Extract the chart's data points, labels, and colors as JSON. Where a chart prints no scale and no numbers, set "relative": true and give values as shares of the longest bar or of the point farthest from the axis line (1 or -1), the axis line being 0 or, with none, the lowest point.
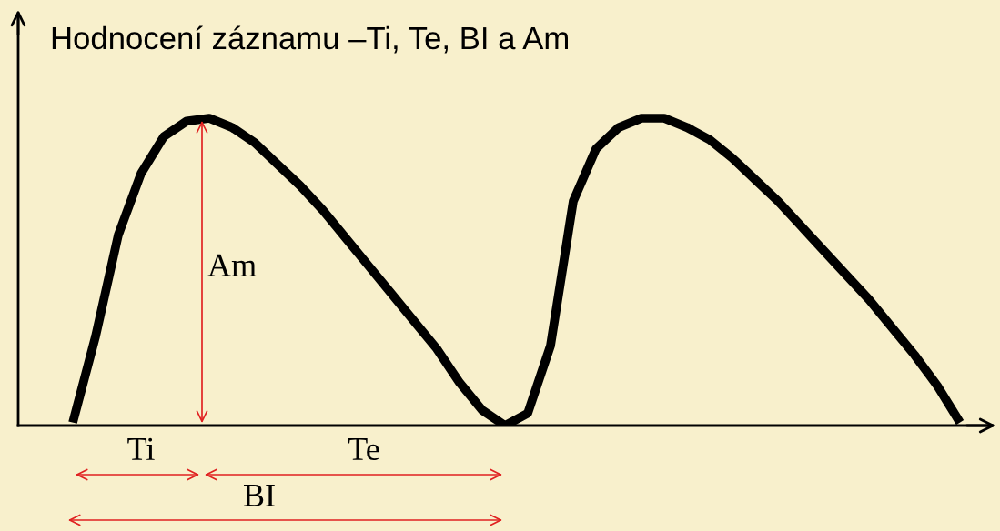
{
  "chart_data": {
    "type": "line",
    "title": "Hodnocení záznamu –Ti, Te, BI a Am",
    "relative": true,
    "categories": [
      null,
      null,
      null,
      null,
      null,
      null,
      null,
      null,
      null,
      null,
      null,
      null,
      null,
      null,
      null,
      null,
      null,
      null,
      null,
      null,
      null,
      null,
      null,
      null,
      null,
      null,
      null,
      null,
      null,
      null,
      null,
      null,
      null,
      null,
      null,
      null,
      null,
      null,
      null,
      null
    ],
    "series": [
      {
        "color": "#000000",
        "values": [
          0.01,
          0.29,
          0.62,
          0.82,
          0.94,
          0.99,
          1.0,
          0.97,
          0.92,
          0.85,
          0.78,
          0.7,
          0.61,
          0.52,
          0.43,
          0.34,
          0.25,
          0.14,
          0.05,
          0.0,
          0.04,
          0.26,
          0.73,
          0.9,
          0.97,
          1.0,
          1.0,
          0.97,
          0.93,
          0.87,
          0.8,
          0.73,
          0.65,
          0.57,
          0.49,
          0.41,
          0.32,
          0.23,
          0.13,
          0.01
        ]
      }
    ],
    "annotations": [
      "Am",
      "Ti",
      "Te",
      "BI"
    ],
    "legend": false,
    "marker": "none",
    "line_style": "solid"
  }
}
